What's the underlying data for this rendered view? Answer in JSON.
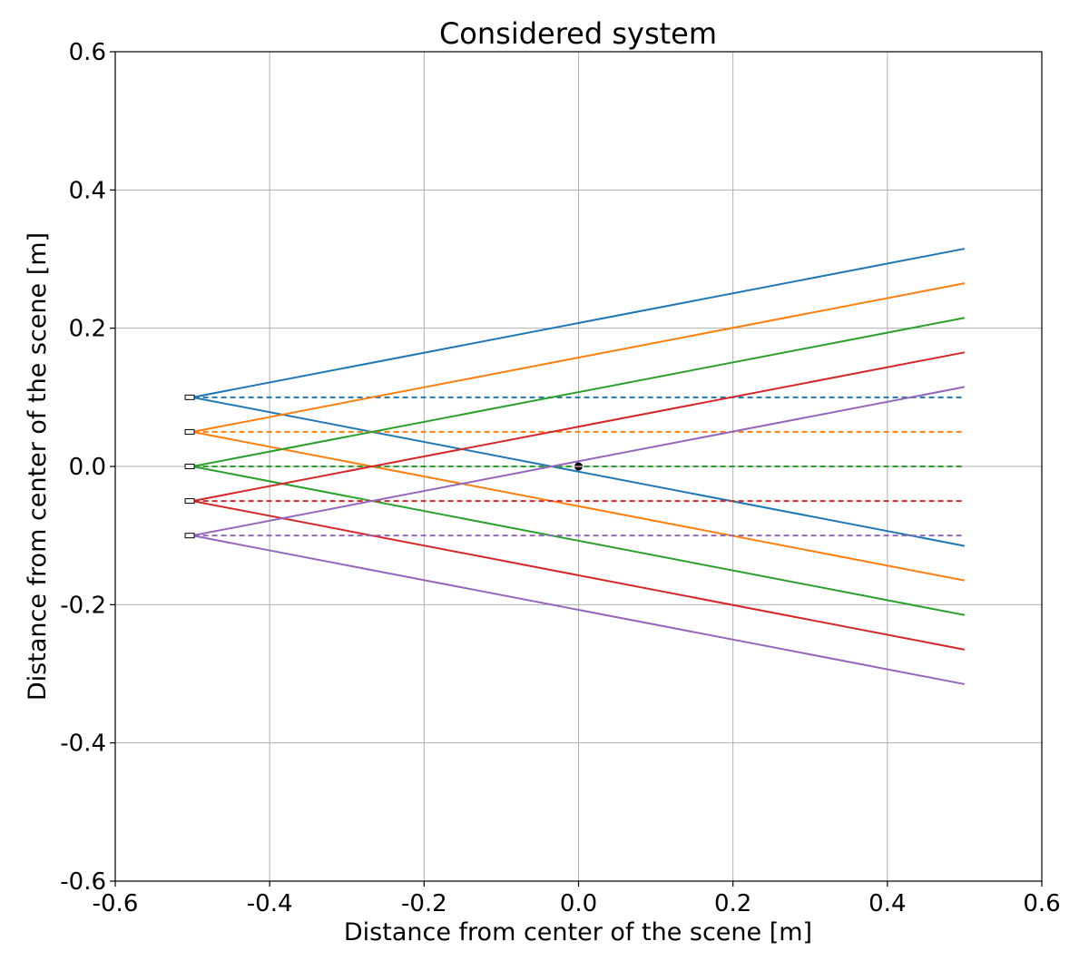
{
  "chart_data": {
    "type": "line",
    "title": "Considered system",
    "xlabel": "Distance from center of the scene [m]",
    "ylabel": "Distance from center of the scene [m]",
    "xlim": [
      -0.6,
      0.6
    ],
    "ylim": [
      -0.6,
      0.6
    ],
    "xticks": [
      -0.6,
      -0.4,
      -0.2,
      0.0,
      0.2,
      0.4,
      0.6
    ],
    "yticks": [
      -0.6,
      -0.4,
      -0.2,
      0.0,
      0.2,
      0.4,
      0.6
    ],
    "xtick_labels": [
      "-0.6",
      "-0.4",
      "-0.2",
      "0.0",
      "0.2",
      "0.4",
      "0.6"
    ],
    "ytick_labels": [
      "-0.6",
      "-0.4",
      "-0.2",
      "0.0",
      "0.2",
      "0.4",
      "0.6"
    ],
    "grid": true,
    "colors": [
      "#1f77b4",
      "#ff7f0e",
      "#2ca02c",
      "#d62728",
      "#9467bd"
    ],
    "sources": [
      {
        "x": -0.5,
        "y": 0.1,
        "color": "#1f77b4",
        "upper_ray": [
          [
            -0.5,
            0.1
          ],
          [
            0.5,
            0.315
          ]
        ],
        "lower_ray": [
          [
            -0.5,
            0.1
          ],
          [
            0.5,
            -0.115
          ]
        ],
        "axis_line": [
          [
            -0.51,
            0.1
          ],
          [
            0.5,
            0.1
          ]
        ]
      },
      {
        "x": -0.5,
        "y": 0.05,
        "color": "#ff7f0e",
        "upper_ray": [
          [
            -0.5,
            0.05
          ],
          [
            0.5,
            0.265
          ]
        ],
        "lower_ray": [
          [
            -0.5,
            0.05
          ],
          [
            0.5,
            -0.165
          ]
        ],
        "axis_line": [
          [
            -0.51,
            0.05
          ],
          [
            0.5,
            0.05
          ]
        ]
      },
      {
        "x": -0.5,
        "y": 0.0,
        "color": "#2ca02c",
        "upper_ray": [
          [
            -0.5,
            0.0
          ],
          [
            0.5,
            0.215
          ]
        ],
        "lower_ray": [
          [
            -0.5,
            0.0
          ],
          [
            0.5,
            -0.215
          ]
        ],
        "axis_line": [
          [
            -0.51,
            0.0
          ],
          [
            0.5,
            0.0
          ]
        ]
      },
      {
        "x": -0.5,
        "y": -0.05,
        "color": "#d62728",
        "upper_ray": [
          [
            -0.5,
            -0.05
          ],
          [
            0.5,
            0.165
          ]
        ],
        "lower_ray": [
          [
            -0.5,
            -0.05
          ],
          [
            0.5,
            -0.265
          ]
        ],
        "axis_line": [
          [
            -0.51,
            -0.05
          ],
          [
            0.5,
            -0.05
          ]
        ]
      },
      {
        "x": -0.5,
        "y": -0.1,
        "color": "#9467bd",
        "upper_ray": [
          [
            -0.5,
            -0.1
          ],
          [
            0.5,
            0.115
          ]
        ],
        "lower_ray": [
          [
            -0.5,
            -0.1
          ],
          [
            0.5,
            -0.315
          ]
        ],
        "axis_line": [
          [
            -0.51,
            -0.1
          ],
          [
            0.5,
            -0.1
          ]
        ]
      }
    ],
    "center_marker": {
      "x": 0.0,
      "y": 0.0,
      "color": "#000000"
    }
  }
}
